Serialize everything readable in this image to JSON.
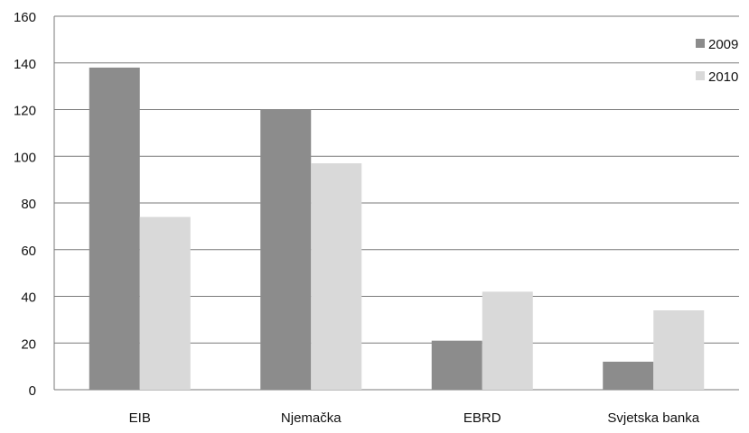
{
  "chart_data": {
    "type": "bar",
    "title": "",
    "xlabel": "",
    "ylabel": "",
    "categories": [
      "EIB",
      "Njemačka",
      "EBRD",
      "Svjetska banka"
    ],
    "series": [
      {
        "name": "2009",
        "values": [
          138,
          120,
          21,
          12
        ],
        "color": "#8c8c8c"
      },
      {
        "name": "2010",
        "values": [
          74,
          97,
          42,
          34
        ],
        "color": "#d9d9d9"
      }
    ],
    "ylim": [
      0,
      160
    ],
    "yticks": [
      0,
      20,
      40,
      60,
      80,
      100,
      120,
      140,
      160
    ],
    "grid": true,
    "legend_position": "top-right"
  }
}
